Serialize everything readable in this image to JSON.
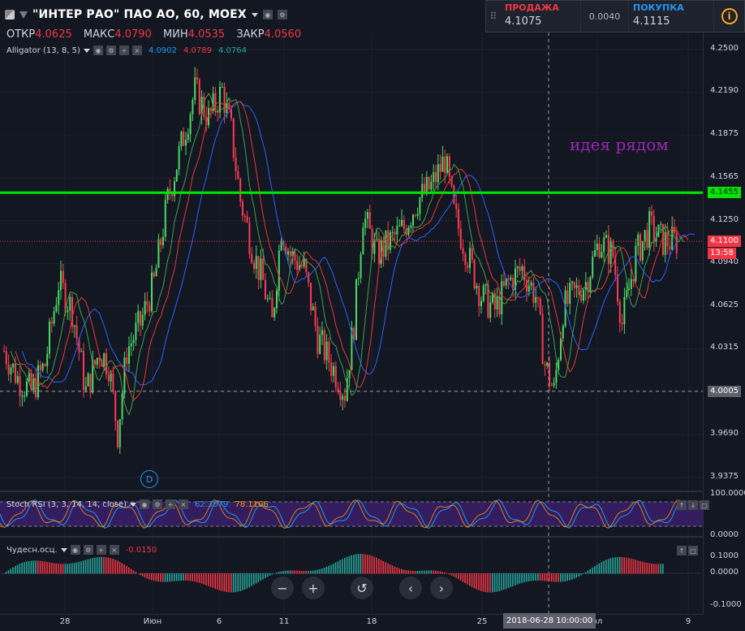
{
  "header": {
    "symbol": "\"ИНТЕР РАО\" ПАО АО, 60, MOEX",
    "ohlc": [
      {
        "label": "ОТКР",
        "value": "4.0625"
      },
      {
        "label": "МАКС",
        "value": "4.0790"
      },
      {
        "label": "МИН",
        "value": "4.0535"
      },
      {
        "label": "ЗАКР",
        "value": "4.0560"
      }
    ]
  },
  "trade_panel": {
    "sell_label": "ПРОДАЖА",
    "sell_price": "4.1075",
    "spread": "0.0040",
    "buy_label": "ПОКУПКА",
    "buy_price": "4.1115",
    "sell_color": "#f23645",
    "buy_color": "#2196f3"
  },
  "indicators": {
    "alligator": {
      "name": "Alligator (13, 8, 5)",
      "values": [
        "4.0902",
        "4.0789",
        "4.0764"
      ],
      "colors": [
        "#2196f3",
        "#f23645",
        "#22ab94"
      ]
    },
    "stoch_rsi": {
      "name": "Stoch RSI (3, 3, 14, 14, close)",
      "values": [
        "62.3679",
        "78.1106"
      ],
      "colors": [
        "#2196f3",
        "#ff9800"
      ]
    },
    "awesome": {
      "name": "Чудесн.осц.",
      "value": "-0.0150"
    }
  },
  "price_axis": {
    "ticks": [
      "4.2500",
      "4.2190",
      "4.1875",
      "4.1565",
      "4.1250",
      "4.0940",
      "4.0625",
      "4.0315",
      "4.0005",
      "3.9690",
      "3.9375"
    ],
    "green_level": "4.1455",
    "current_price": "4.1100",
    "countdown": "13:58",
    "crosshair_price": "4.0005"
  },
  "stoch_axis": {
    "ticks": [
      "100.0000",
      "0.0000"
    ]
  },
  "ao_axis": {
    "ticks": [
      "0.1000",
      "0.0000",
      "-0.1000"
    ]
  },
  "time_axis": {
    "labels": [
      "28",
      "Июн",
      "6",
      "11",
      "18",
      "25",
      "ол",
      "9"
    ],
    "crosshair_time": "2018-06-28 10:00:00"
  },
  "annotation": "идея рядом",
  "dividend_marker": "D",
  "colors": {
    "up": "#26a69a",
    "down": "#f23645",
    "green_line": "#00e600",
    "price_line": "#f23645",
    "annotation": "#9c27b0"
  },
  "icons": {
    "nav": [
      "zoom-out-icon",
      "zoom-in-icon",
      "reset-icon",
      "scroll-left-icon",
      "scroll-right-icon"
    ]
  }
}
